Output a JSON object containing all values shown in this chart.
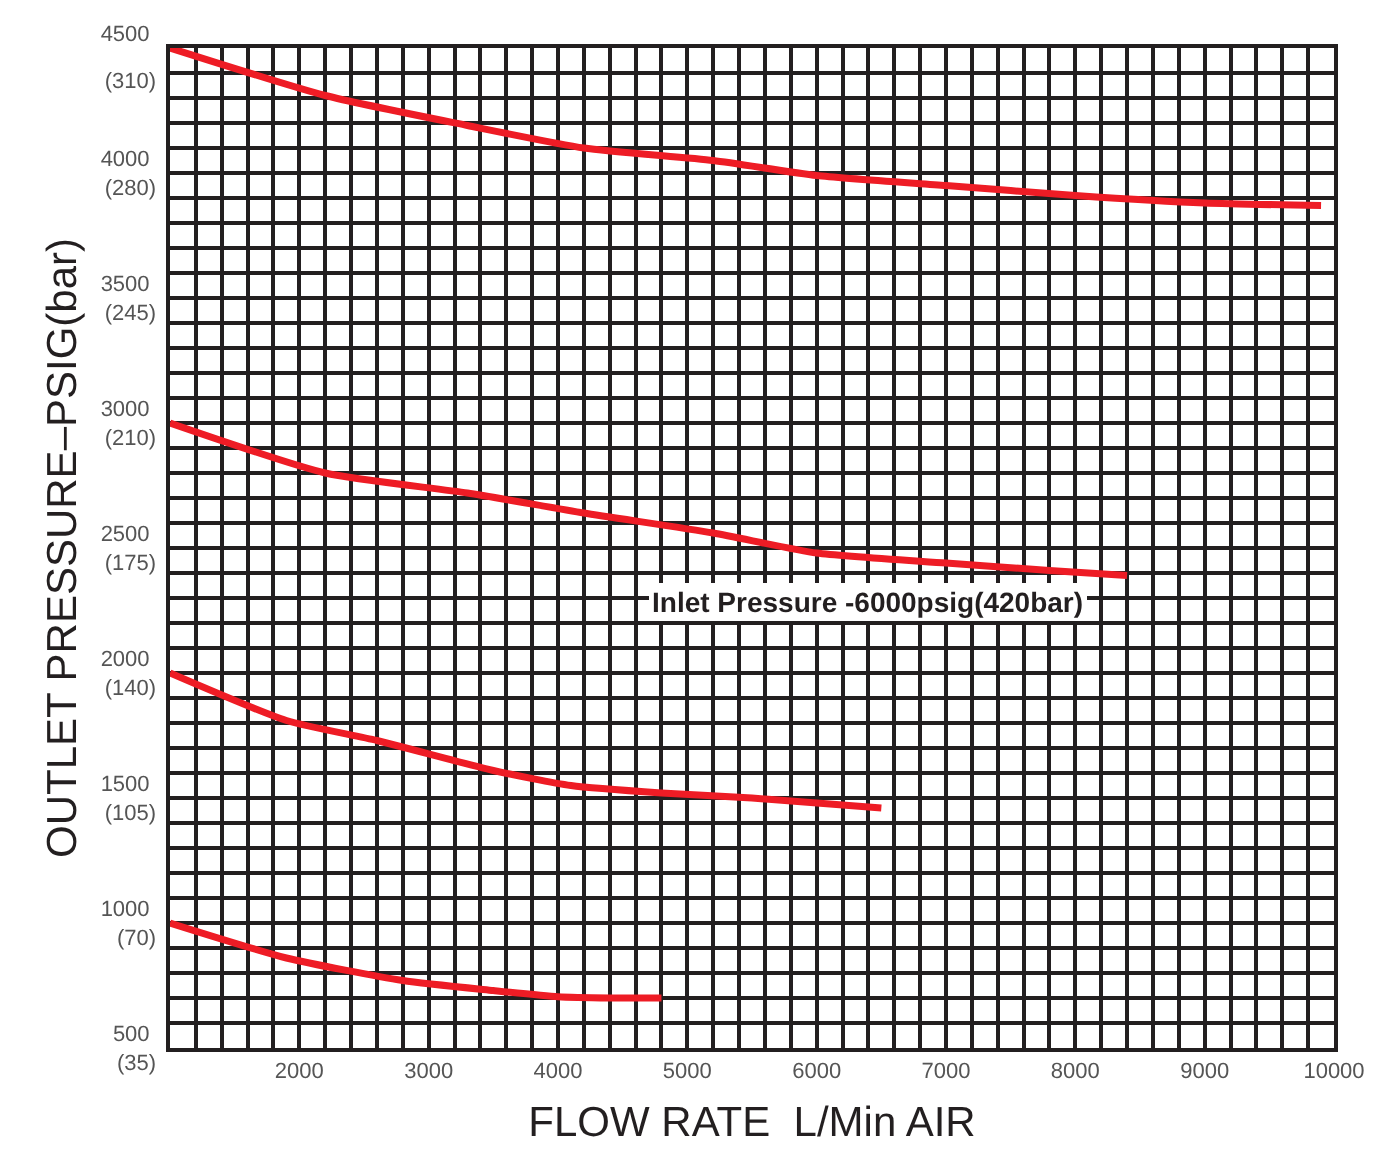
{
  "chart_data": {
    "type": "line",
    "xlabel": "FLOW RATE  L/Min AIR",
    "ylabel": "OUTLET PRESSURE–PSIG(bar)",
    "annotations": [
      "Inlet Pressure -6000psig(420bar)"
    ],
    "y2lim": [
      35,
      315
    ],
    "y2ticks": [
      {
        "value": 35,
        "label": "(35)"
      },
      {
        "value": 70,
        "label": "(70)"
      },
      {
        "value": 105,
        "label": "(105)"
      },
      {
        "value": 140,
        "label": "(140)"
      },
      {
        "value": 175,
        "label": "(175)"
      },
      {
        "value": 210,
        "label": "(210)"
      },
      {
        "value": 245,
        "label": "(245)"
      },
      {
        "value": 280,
        "label": "(280)"
      },
      {
        "value": 310,
        "label": "(310)"
      }
    ],
    "xlim": [
      1000,
      10000
    ],
    "ylim": [
      500,
      4500
    ],
    "grid": true,
    "marker": "none",
    "line_style": "solid",
    "xticks": [
      {
        "value": 1000,
        "label": null
      },
      {
        "value": 1200,
        "label": null
      },
      {
        "value": 1400,
        "label": null
      },
      {
        "value": 1600,
        "label": null
      },
      {
        "value": 1800,
        "label": null
      },
      2000,
      {
        "value": 2200,
        "label": null
      },
      {
        "value": 2400,
        "label": null
      },
      {
        "value": 2600,
        "label": null
      },
      {
        "value": 2800,
        "label": null
      },
      3000,
      {
        "value": 3200,
        "label": null
      },
      {
        "value": 3400,
        "label": null
      },
      {
        "value": 3600,
        "label": null
      },
      {
        "value": 3800,
        "label": null
      },
      4000,
      {
        "value": 4200,
        "label": null
      },
      {
        "value": 4400,
        "label": null
      },
      {
        "value": 4600,
        "label": null
      },
      {
        "value": 4800,
        "label": null
      },
      5000,
      {
        "value": 5200,
        "label": null
      },
      {
        "value": 5400,
        "label": null
      },
      {
        "value": 5600,
        "label": null
      },
      {
        "value": 5800,
        "label": null
      },
      6000,
      {
        "value": 6200,
        "label": null
      },
      {
        "value": 6400,
        "label": null
      },
      {
        "value": 6600,
        "label": null
      },
      {
        "value": 6800,
        "label": null
      },
      7000,
      {
        "value": 7200,
        "label": null
      },
      {
        "value": 7400,
        "label": null
      },
      {
        "value": 7600,
        "label": null
      },
      {
        "value": 7800,
        "label": null
      },
      8000,
      {
        "value": 8200,
        "label": null
      },
      {
        "value": 8400,
        "label": null
      },
      {
        "value": 8600,
        "label": null
      },
      {
        "value": 8800,
        "label": null
      },
      9000,
      {
        "value": 9200,
        "label": null
      },
      {
        "value": 9400,
        "label": null
      },
      {
        "value": 9600,
        "label": null
      },
      {
        "value": 9800,
        "label": null
      },
      10000
    ],
    "yticks": [
      500,
      {
        "value": 600,
        "label": null
      },
      {
        "value": 700,
        "label": null
      },
      {
        "value": 800,
        "label": null
      },
      {
        "value": 900,
        "label": null
      },
      1000,
      {
        "value": 1100,
        "label": null
      },
      {
        "value": 1200,
        "label": null
      },
      {
        "value": 1300,
        "label": null
      },
      {
        "value": 1400,
        "label": null
      },
      1500,
      {
        "value": 1600,
        "label": null
      },
      {
        "value": 1700,
        "label": null
      },
      {
        "value": 1800,
        "label": null
      },
      {
        "value": 1900,
        "label": null
      },
      2000,
      {
        "value": 2100,
        "label": null
      },
      {
        "value": 2200,
        "label": null
      },
      {
        "value": 2300,
        "label": null
      },
      {
        "value": 2400,
        "label": null
      },
      2500,
      {
        "value": 2600,
        "label": null
      },
      {
        "value": 2700,
        "label": null
      },
      {
        "value": 2800,
        "label": null
      },
      {
        "value": 2900,
        "label": null
      },
      3000,
      {
        "value": 3100,
        "label": null
      },
      {
        "value": 3200,
        "label": null
      },
      {
        "value": 3300,
        "label": null
      },
      {
        "value": 3400,
        "label": null
      },
      3500,
      {
        "value": 3600,
        "label": null
      },
      {
        "value": 3700,
        "label": null
      },
      {
        "value": 3800,
        "label": null
      },
      {
        "value": 3900,
        "label": null
      },
      4000,
      {
        "value": 4100,
        "label": null
      },
      {
        "value": 4200,
        "label": null
      },
      {
        "value": 4300,
        "label": null
      },
      {
        "value": 4400,
        "label": null
      },
      4500
    ],
    "series": [
      {
        "color": "#ee1c25",
        "x": [
          1000,
          2200,
          3300,
          4200,
          5200,
          6000,
          7000,
          8000,
          9000,
          9900
        ],
        "values": [
          4500,
          4310,
          4190,
          4100,
          4050,
          3990,
          3950,
          3910,
          3880,
          3870
        ]
      },
      {
        "color": "#ee1c25",
        "x": [
          1000,
          2200,
          3300,
          4200,
          5200,
          6000,
          7000,
          7800,
          8400
        ],
        "values": [
          3000,
          2800,
          2720,
          2640,
          2560,
          2480,
          2440,
          2410,
          2390
        ]
      },
      {
        "color": "#ee1c25",
        "x": [
          1000,
          1900,
          2600,
          3500,
          4100,
          4800,
          5500,
          6500
        ],
        "values": [
          2000,
          1810,
          1730,
          1610,
          1550,
          1520,
          1500,
          1460
        ]
      },
      {
        "color": "#ee1c25",
        "x": [
          1000,
          1900,
          2800,
          3500,
          4000,
          4400,
          4800
        ],
        "values": [
          1000,
          860,
          770,
          730,
          705,
          700,
          700
        ]
      }
    ]
  }
}
